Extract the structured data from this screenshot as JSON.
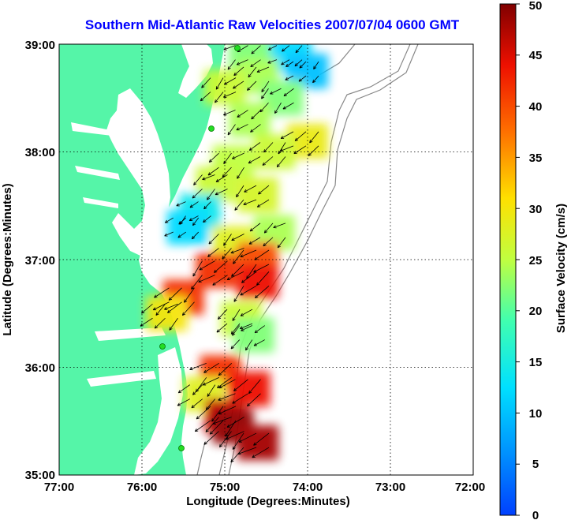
{
  "title": "Southern Mid-Atlantic Raw Velocities 2007/07/04 0600 GMT",
  "xlabel": "Longitude (Degrees:Minutes)",
  "ylabel": "Latitude (Degrees:Minutes)",
  "colorbar_label": "Surface Velocity (cm/s)",
  "x_ticks": [
    "77:00",
    "76:00",
    "75:00",
    "74:00",
    "73:00",
    "72:00"
  ],
  "y_ticks": [
    "39:00",
    "38:00",
    "37:00",
    "36:00",
    "35:00"
  ],
  "colorbar_ticks": [
    "50",
    "45",
    "40",
    "35",
    "30",
    "25",
    "20",
    "15",
    "10",
    "5",
    "0"
  ],
  "colors": {
    "title": "#0000ff",
    "land": "#55f5a8",
    "water": "#ffffff",
    "bathymetry": "#888888",
    "stations": "#22dd22",
    "grid": "#000000"
  },
  "map_data": {
    "lon_range": [
      -77,
      -72
    ],
    "lat_range": [
      35,
      39
    ],
    "velocity_range_cms": [
      0,
      50
    ],
    "colormap": "jet",
    "field": [
      {
        "lat": 38.9,
        "lon": -74.7,
        "speed": 22
      },
      {
        "lat": 38.9,
        "lon": -74.2,
        "speed": 12
      },
      {
        "lat": 38.75,
        "lon": -74.0,
        "speed": 10
      },
      {
        "lat": 38.7,
        "lon": -74.6,
        "speed": 24
      },
      {
        "lat": 38.6,
        "lon": -75.0,
        "speed": 26
      },
      {
        "lat": 38.5,
        "lon": -74.3,
        "speed": 22
      },
      {
        "lat": 38.3,
        "lon": -74.7,
        "speed": 24
      },
      {
        "lat": 38.1,
        "lon": -74.0,
        "speed": 29
      },
      {
        "lat": 38.0,
        "lon": -74.4,
        "speed": 26
      },
      {
        "lat": 37.9,
        "lon": -74.9,
        "speed": 25
      },
      {
        "lat": 37.7,
        "lon": -75.1,
        "speed": 26
      },
      {
        "lat": 37.6,
        "lon": -74.6,
        "speed": 27
      },
      {
        "lat": 37.45,
        "lon": -75.3,
        "speed": 14
      },
      {
        "lat": 37.3,
        "lon": -75.45,
        "speed": 12
      },
      {
        "lat": 37.25,
        "lon": -74.4,
        "speed": 24
      },
      {
        "lat": 37.15,
        "lon": -74.9,
        "speed": 28
      },
      {
        "lat": 37.0,
        "lon": -74.6,
        "speed": 40
      },
      {
        "lat": 36.9,
        "lon": -75.1,
        "speed": 42
      },
      {
        "lat": 36.8,
        "lon": -74.6,
        "speed": 44
      },
      {
        "lat": 36.65,
        "lon": -75.5,
        "speed": 42
      },
      {
        "lat": 36.5,
        "lon": -75.7,
        "speed": 30
      },
      {
        "lat": 36.45,
        "lon": -74.8,
        "speed": 26
      },
      {
        "lat": 36.3,
        "lon": -74.65,
        "speed": 22
      },
      {
        "lat": 35.95,
        "lon": -75.05,
        "speed": 42
      },
      {
        "lat": 35.8,
        "lon": -74.7,
        "speed": 44
      },
      {
        "lat": 35.75,
        "lon": -75.25,
        "speed": 28
      },
      {
        "lat": 35.55,
        "lon": -75.0,
        "speed": 46
      },
      {
        "lat": 35.45,
        "lon": -74.9,
        "speed": 49
      },
      {
        "lat": 35.3,
        "lon": -74.6,
        "speed": 48
      }
    ]
  }
}
